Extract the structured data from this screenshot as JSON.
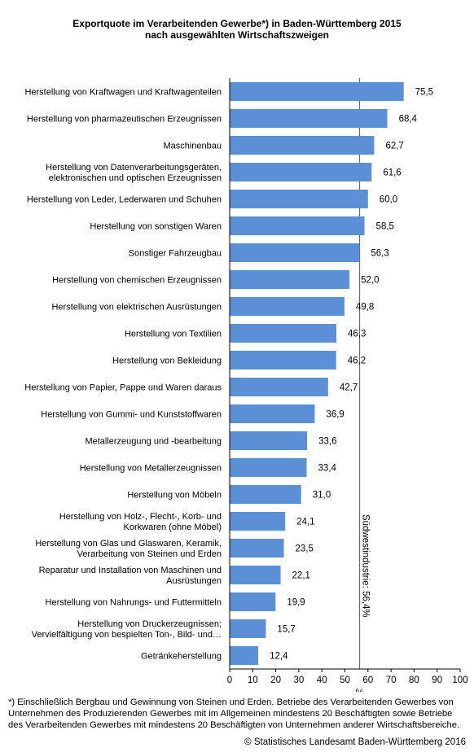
{
  "title_line1": "Exportquote im Verarbeitenden Gewerbe*) in Baden-Württemberg 2015",
  "title_line2": "nach ausgewählten Wirtschaftszweigen",
  "footnote": "*) Einschließlich Bergbau und Gewinnung von Steinen und Erden. Betriebe des Verarbeitenden Gewerbes von Unternehmen des Produzierenden Gewerbes mit im Allgemeinen mindestens 20 Beschäftigten sowie Betriebe des Verarbeitenden Gewerbes mit mindestens 20 Beschäftigten von Unternehmen anderer Wirtschaftsbereiche.",
  "copyright": "© Statistisches Landesamt Baden-Württemberg 2016",
  "colors": {
    "bar": "#5b8fd6",
    "reference_line": "#555555",
    "axis": "#000000"
  },
  "chart_data": {
    "type": "bar",
    "orientation": "horizontal",
    "categories": [
      [
        "Herstellung von Kraftwagen und Kraftwagenteilen"
      ],
      [
        "Herstellung von pharmazeutischen Erzeugnissen"
      ],
      [
        "Maschinenbau"
      ],
      [
        "Herstellung von Datenverarbeitungsgeräten,",
        "elektronischen und optischen Erzeugnissen"
      ],
      [
        "Herstellung von Leder, Lederwaren und Schuhen"
      ],
      [
        "Herstellung von sonstigen Waren"
      ],
      [
        "Sonstiger Fahrzeugbau"
      ],
      [
        "Herstellung von chemischen Erzeugnissen"
      ],
      [
        "Herstellung von elektrischen Ausrüstungen"
      ],
      [
        "Herstellung von Textilien"
      ],
      [
        "Herstellung von Bekleidung"
      ],
      [
        "Herstellung von Papier, Pappe und Waren daraus"
      ],
      [
        "Herstellung von Gummi- und Kunststoffwaren"
      ],
      [
        "Metallerzeugung und -bearbeitung"
      ],
      [
        "Herstellung von Metallerzeugnissen"
      ],
      [
        "Herstellung von Möbeln"
      ],
      [
        "Herstellung von Holz-, Flecht-, Korb- und",
        "Korkwaren (ohne Möbel)"
      ],
      [
        "Herstellung von Glas und Glaswaren, Keramik,",
        "Verarbeitung von Steinen und Erden"
      ],
      [
        "Reparatur und Installation von Maschinen und",
        "Ausrüstungen"
      ],
      [
        "Herstellung von Nahrungs- und Futtermitteln"
      ],
      [
        "Herstellung von Druckerzeugnissen;",
        "Vervielfältigung von bespielten Ton-, Bild- und…"
      ],
      [
        "Getränkeherstellung"
      ]
    ],
    "values": [
      75.5,
      68.4,
      62.7,
      61.6,
      60.0,
      58.5,
      56.3,
      52.0,
      49.8,
      46.3,
      46.2,
      42.7,
      36.9,
      33.6,
      33.4,
      31.0,
      24.1,
      23.5,
      22.1,
      19.9,
      15.7,
      12.4
    ],
    "value_labels": [
      "75,5",
      "68,4",
      "62,7",
      "61,6",
      "60,0",
      "58,5",
      "56,3",
      "52,0",
      "49,8",
      "46,3",
      "46,2",
      "42,7",
      "36,9",
      "33,6",
      "33,4",
      "31,0",
      "24,1",
      "23,5",
      "22,1",
      "19,9",
      "15,7",
      "12,4"
    ],
    "xlim": [
      0,
      100
    ],
    "xticks": [
      0,
      10,
      20,
      30,
      40,
      50,
      60,
      70,
      80,
      90,
      100
    ],
    "xlabel": "%",
    "reference": {
      "value": 56.4,
      "label": "Südwestindustrie: 56,4%"
    },
    "grid": false
  }
}
